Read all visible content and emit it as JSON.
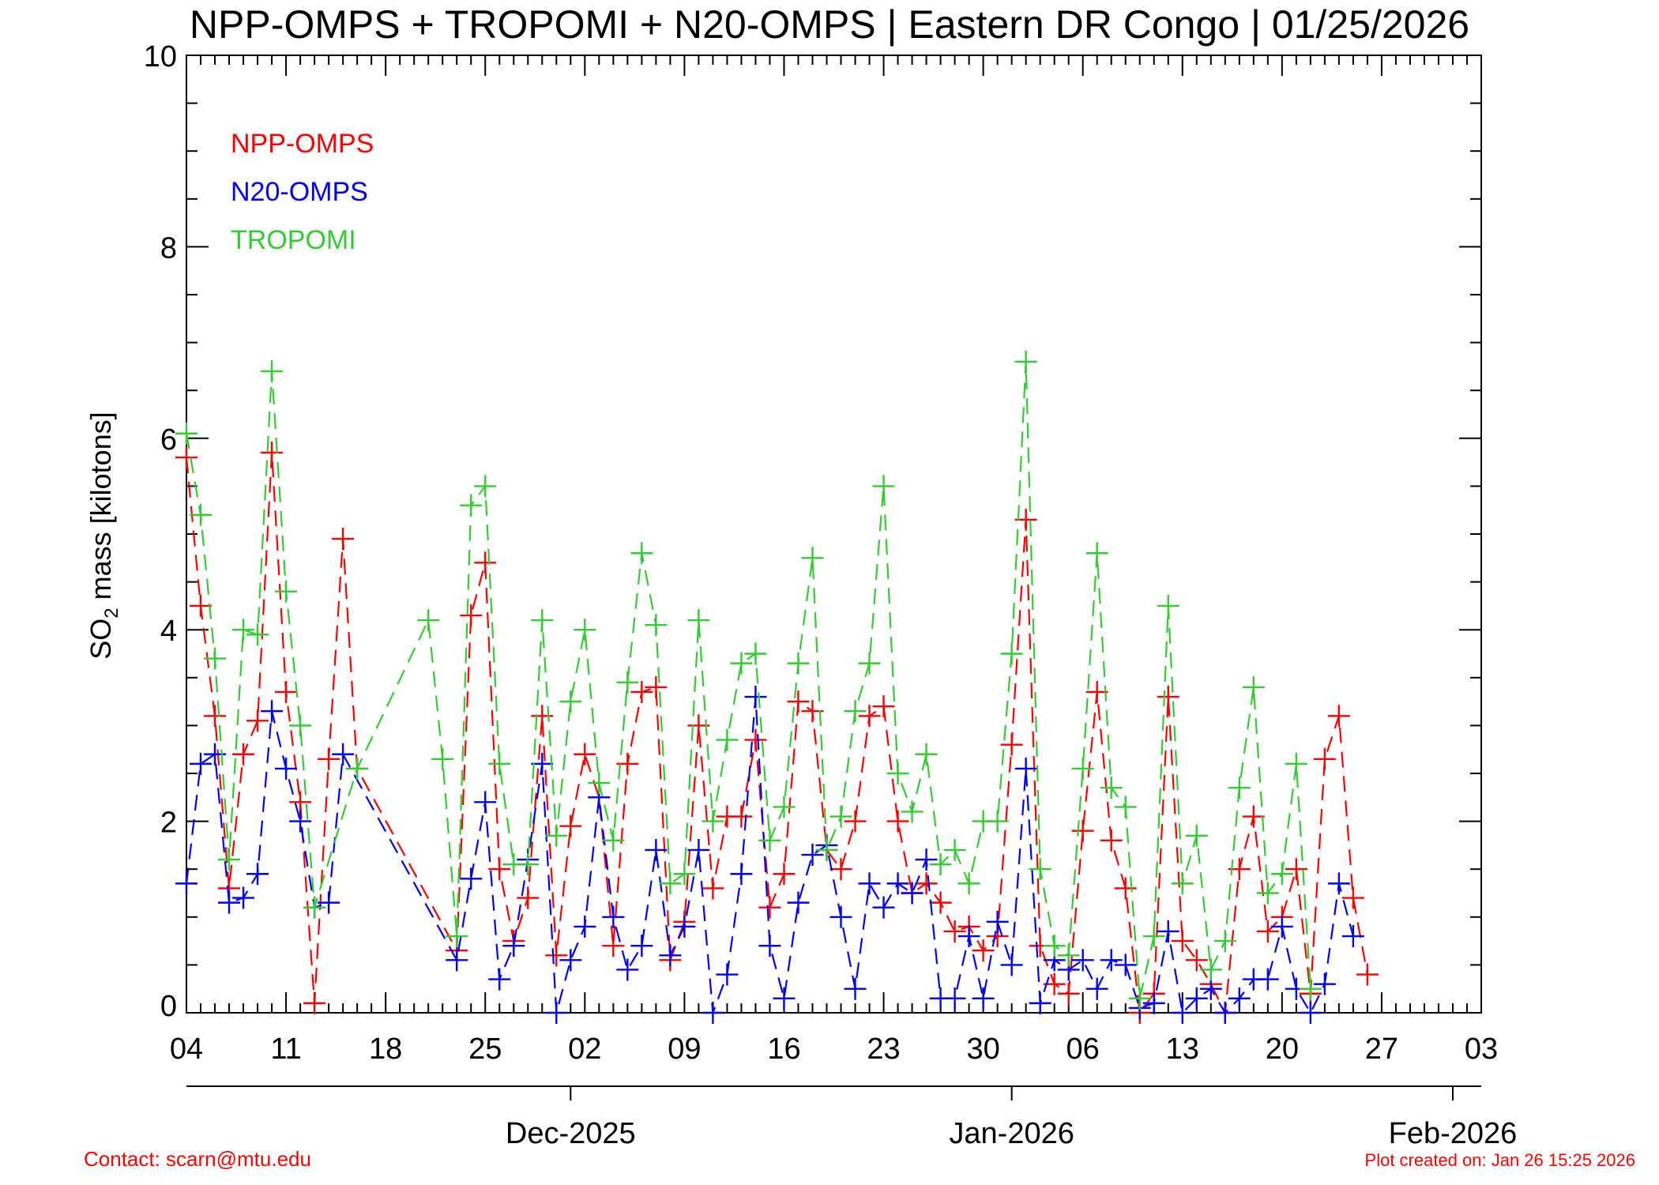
{
  "chart_data": {
    "type": "line",
    "title": "NPP-OMPS + TROPOMI + N20-OMPS | Eastern DR Congo | 01/25/2026",
    "ylabel_pre": "SO",
    "ylabel_sub": "2",
    "ylabel_post": " mass [kilotons]",
    "ylim": [
      0,
      10
    ],
    "y_ticks": [
      0,
      2,
      4,
      6,
      8,
      10
    ],
    "xlim": [
      "2025-11-04",
      "2026-02-03"
    ],
    "x_day_ticks": [
      {
        "date": "2025-11-04",
        "label": "04"
      },
      {
        "date": "2025-11-11",
        "label": "11"
      },
      {
        "date": "2025-11-18",
        "label": "18"
      },
      {
        "date": "2025-11-25",
        "label": "25"
      },
      {
        "date": "2025-12-02",
        "label": "02"
      },
      {
        "date": "2025-12-09",
        "label": "09"
      },
      {
        "date": "2025-12-16",
        "label": "16"
      },
      {
        "date": "2025-12-23",
        "label": "23"
      },
      {
        "date": "2025-12-30",
        "label": "30"
      },
      {
        "date": "2026-01-06",
        "label": "06"
      },
      {
        "date": "2026-01-13",
        "label": "13"
      },
      {
        "date": "2026-01-20",
        "label": "20"
      },
      {
        "date": "2026-01-27",
        "label": "27"
      },
      {
        "date": "2026-02-03",
        "label": "03"
      }
    ],
    "x_month_ticks": [
      {
        "date": "2025-12-01",
        "label": "Dec-2025"
      },
      {
        "date": "2026-01-01",
        "label": "Jan-2026"
      },
      {
        "date": "2026-02-01",
        "label": "Feb-2026"
      }
    ],
    "legend_position": "top-left",
    "series": [
      {
        "name": "NPP-OMPS",
        "color": "#ff0000",
        "points": [
          [
            "2025-11-04",
            5.8
          ],
          [
            "2025-11-05",
            4.25
          ],
          [
            "2025-11-06",
            3.1
          ],
          [
            "2025-11-07",
            1.3
          ],
          [
            "2025-11-08",
            2.7
          ],
          [
            "2025-11-09",
            3.05
          ],
          [
            "2025-11-10",
            5.85
          ],
          [
            "2025-11-11",
            3.35
          ],
          [
            "2025-11-12",
            2.2
          ],
          [
            "2025-11-13",
            0.1
          ],
          [
            "2025-11-14",
            2.65
          ],
          [
            "2025-11-15",
            4.95
          ],
          [
            "2025-11-16",
            2.55
          ],
          [
            "2025-11-23",
            0.65
          ],
          [
            "2025-11-24",
            4.15
          ],
          [
            "2025-11-25",
            4.7
          ],
          [
            "2025-11-26",
            1.5
          ],
          [
            "2025-11-27",
            0.75
          ],
          [
            "2025-11-28",
            1.2
          ],
          [
            "2025-11-29",
            3.1
          ],
          [
            "2025-11-30",
            0.6
          ],
          [
            "2025-12-01",
            1.95
          ],
          [
            "2025-12-02",
            2.7
          ],
          [
            "2025-12-03",
            2.25
          ],
          [
            "2025-12-04",
            0.7
          ],
          [
            "2025-12-05",
            2.6
          ],
          [
            "2025-12-06",
            3.35
          ],
          [
            "2025-12-07",
            3.4
          ],
          [
            "2025-12-08",
            0.55
          ],
          [
            "2025-12-09",
            0.95
          ],
          [
            "2025-12-10",
            3.0
          ],
          [
            "2025-12-11",
            1.3
          ],
          [
            "2025-12-12",
            2.05
          ],
          [
            "2025-12-13",
            2.05
          ],
          [
            "2025-12-14",
            2.85
          ],
          [
            "2025-12-15",
            1.1
          ],
          [
            "2025-12-16",
            1.45
          ],
          [
            "2025-12-17",
            3.25
          ],
          [
            "2025-12-18",
            3.15
          ],
          [
            "2025-12-19",
            1.7
          ],
          [
            "2025-12-20",
            1.5
          ],
          [
            "2025-12-21",
            2.0
          ],
          [
            "2025-12-22",
            3.1
          ],
          [
            "2025-12-23",
            3.2
          ],
          [
            "2025-12-24",
            2.0
          ],
          [
            "2025-12-25",
            1.25
          ],
          [
            "2025-12-26",
            1.35
          ],
          [
            "2025-12-27",
            1.15
          ],
          [
            "2025-12-28",
            0.85
          ],
          [
            "2025-12-29",
            0.9
          ],
          [
            "2025-12-30",
            0.65
          ],
          [
            "2025-12-31",
            0.8
          ],
          [
            "2026-01-01",
            2.8
          ],
          [
            "2026-01-02",
            5.15
          ],
          [
            "2026-01-03",
            0.7
          ],
          [
            "2026-01-04",
            0.3
          ],
          [
            "2026-01-05",
            0.2
          ],
          [
            "2026-01-06",
            1.9
          ],
          [
            "2026-01-07",
            3.35
          ],
          [
            "2026-01-08",
            1.8
          ],
          [
            "2026-01-09",
            1.3
          ],
          [
            "2026-01-10",
            0.0
          ],
          [
            "2026-01-11",
            0.2
          ],
          [
            "2026-01-12",
            3.3
          ],
          [
            "2026-01-13",
            0.75
          ],
          [
            "2026-01-14",
            0.55
          ],
          [
            "2026-01-15",
            0.3
          ],
          [
            "2026-01-16",
            0.0
          ],
          [
            "2026-01-17",
            1.5
          ],
          [
            "2026-01-18",
            2.05
          ],
          [
            "2026-01-19",
            0.85
          ],
          [
            "2026-01-20",
            1.0
          ],
          [
            "2026-01-21",
            1.5
          ],
          [
            "2026-01-22",
            0.2
          ],
          [
            "2026-01-23",
            2.65
          ],
          [
            "2026-01-24",
            3.1
          ],
          [
            "2026-01-25",
            1.2
          ],
          [
            "2026-01-26",
            0.4
          ]
        ]
      },
      {
        "name": "N20-OMPS",
        "color": "#0000ff",
        "points": [
          [
            "2025-11-04",
            1.35
          ],
          [
            "2025-11-05",
            2.6
          ],
          [
            "2025-11-06",
            2.7
          ],
          [
            "2025-11-07",
            1.15
          ],
          [
            "2025-11-08",
            1.2
          ],
          [
            "2025-11-09",
            1.45
          ],
          [
            "2025-11-10",
            3.15
          ],
          [
            "2025-11-11",
            2.55
          ],
          [
            "2025-11-12",
            2.0
          ],
          [
            "2025-11-13",
            1.1
          ],
          [
            "2025-11-14",
            1.15
          ],
          [
            "2025-11-15",
            2.7
          ],
          [
            "2025-11-23",
            0.55
          ],
          [
            "2025-11-24",
            1.4
          ],
          [
            "2025-11-25",
            2.2
          ],
          [
            "2025-11-26",
            0.35
          ],
          [
            "2025-11-27",
            0.7
          ],
          [
            "2025-11-28",
            1.6
          ],
          [
            "2025-11-29",
            2.6
          ],
          [
            "2025-11-30",
            0.0
          ],
          [
            "2025-12-01",
            0.55
          ],
          [
            "2025-12-02",
            0.9
          ],
          [
            "2025-12-03",
            2.25
          ],
          [
            "2025-12-04",
            1.0
          ],
          [
            "2025-12-05",
            0.45
          ],
          [
            "2025-12-06",
            0.7
          ],
          [
            "2025-12-07",
            1.7
          ],
          [
            "2025-12-08",
            0.6
          ],
          [
            "2025-12-09",
            0.9
          ],
          [
            "2025-12-10",
            1.7
          ],
          [
            "2025-12-11",
            0.0
          ],
          [
            "2025-12-12",
            0.4
          ],
          [
            "2025-12-13",
            1.45
          ],
          [
            "2025-12-14",
            3.3
          ],
          [
            "2025-12-15",
            0.7
          ],
          [
            "2025-12-16",
            0.15
          ],
          [
            "2025-12-17",
            1.15
          ],
          [
            "2025-12-18",
            1.65
          ],
          [
            "2025-12-19",
            1.75
          ],
          [
            "2025-12-20",
            1.0
          ],
          [
            "2025-12-21",
            0.25
          ],
          [
            "2025-12-22",
            1.35
          ],
          [
            "2025-12-23",
            1.1
          ],
          [
            "2025-12-24",
            1.35
          ],
          [
            "2025-12-25",
            1.25
          ],
          [
            "2025-12-26",
            1.6
          ],
          [
            "2025-12-27",
            0.15
          ],
          [
            "2025-12-28",
            0.15
          ],
          [
            "2025-12-29",
            0.8
          ],
          [
            "2025-12-30",
            0.15
          ],
          [
            "2025-12-31",
            0.95
          ],
          [
            "2026-01-01",
            0.5
          ],
          [
            "2026-01-02",
            2.55
          ],
          [
            "2026-01-03",
            0.1
          ],
          [
            "2026-01-04",
            0.55
          ],
          [
            "2026-01-05",
            0.45
          ],
          [
            "2026-01-06",
            0.55
          ],
          [
            "2026-01-07",
            0.25
          ],
          [
            "2026-01-08",
            0.55
          ],
          [
            "2026-01-09",
            0.5
          ],
          [
            "2026-01-10",
            0.05
          ],
          [
            "2026-01-11",
            0.1
          ],
          [
            "2026-01-12",
            0.85
          ],
          [
            "2026-01-13",
            0.0
          ],
          [
            "2026-01-14",
            0.15
          ],
          [
            "2026-01-15",
            0.25
          ],
          [
            "2026-01-16",
            0.0
          ],
          [
            "2026-01-17",
            0.15
          ],
          [
            "2026-01-18",
            0.35
          ],
          [
            "2026-01-19",
            0.35
          ],
          [
            "2026-01-20",
            0.9
          ],
          [
            "2026-01-21",
            0.25
          ],
          [
            "2026-01-22",
            0.0
          ],
          [
            "2026-01-23",
            0.3
          ],
          [
            "2026-01-24",
            1.35
          ],
          [
            "2026-01-25",
            0.8
          ]
        ]
      },
      {
        "name": "TROPOMI",
        "color": "#33cc33",
        "points": [
          [
            "2025-11-04",
            6.05
          ],
          [
            "2025-11-05",
            5.2
          ],
          [
            "2025-11-06",
            3.7
          ],
          [
            "2025-11-07",
            1.6
          ],
          [
            "2025-11-08",
            4.0
          ],
          [
            "2025-11-09",
            3.95
          ],
          [
            "2025-11-10",
            6.7
          ],
          [
            "2025-11-11",
            4.4
          ],
          [
            "2025-11-12",
            3.0
          ],
          [
            "2025-11-13",
            1.1
          ],
          [
            "2025-11-16",
            2.55
          ],
          [
            "2025-11-21",
            4.1
          ],
          [
            "2025-11-22",
            2.65
          ],
          [
            "2025-11-23",
            0.8
          ],
          [
            "2025-11-24",
            5.3
          ],
          [
            "2025-11-25",
            5.5
          ],
          [
            "2025-11-26",
            2.6
          ],
          [
            "2025-11-27",
            1.55
          ],
          [
            "2025-11-28",
            1.55
          ],
          [
            "2025-11-29",
            4.1
          ],
          [
            "2025-11-30",
            1.85
          ],
          [
            "2025-12-01",
            3.25
          ],
          [
            "2025-12-02",
            4.0
          ],
          [
            "2025-12-03",
            2.4
          ],
          [
            "2025-12-04",
            1.8
          ],
          [
            "2025-12-05",
            3.45
          ],
          [
            "2025-12-06",
            4.8
          ],
          [
            "2025-12-07",
            4.05
          ],
          [
            "2025-12-08",
            1.35
          ],
          [
            "2025-12-09",
            1.45
          ],
          [
            "2025-12-10",
            4.1
          ],
          [
            "2025-12-11",
            2.0
          ],
          [
            "2025-12-12",
            2.85
          ],
          [
            "2025-12-13",
            3.65
          ],
          [
            "2025-12-14",
            3.75
          ],
          [
            "2025-12-15",
            1.8
          ],
          [
            "2025-12-16",
            2.15
          ],
          [
            "2025-12-17",
            3.65
          ],
          [
            "2025-12-18",
            4.75
          ],
          [
            "2025-12-19",
            1.7
          ],
          [
            "2025-12-20",
            2.05
          ],
          [
            "2025-12-21",
            3.15
          ],
          [
            "2025-12-22",
            3.65
          ],
          [
            "2025-12-23",
            5.5
          ],
          [
            "2025-12-24",
            2.5
          ],
          [
            "2025-12-25",
            2.1
          ],
          [
            "2025-12-26",
            2.7
          ],
          [
            "2025-12-27",
            1.55
          ],
          [
            "2025-12-28",
            1.7
          ],
          [
            "2025-12-29",
            1.35
          ],
          [
            "2025-12-30",
            2.0
          ],
          [
            "2025-12-31",
            2.0
          ],
          [
            "2026-01-01",
            3.75
          ],
          [
            "2026-01-02",
            6.8
          ],
          [
            "2026-01-03",
            1.5
          ],
          [
            "2026-01-04",
            0.7
          ],
          [
            "2026-01-05",
            0.6
          ],
          [
            "2026-01-06",
            2.55
          ],
          [
            "2026-01-07",
            4.8
          ],
          [
            "2026-01-08",
            2.35
          ],
          [
            "2026-01-09",
            2.15
          ],
          [
            "2026-01-10",
            0.15
          ],
          [
            "2026-01-11",
            0.8
          ],
          [
            "2026-01-12",
            4.25
          ],
          [
            "2026-01-13",
            1.35
          ],
          [
            "2026-01-14",
            1.85
          ],
          [
            "2026-01-15",
            0.45
          ],
          [
            "2026-01-16",
            0.75
          ],
          [
            "2026-01-17",
            2.35
          ],
          [
            "2026-01-18",
            3.4
          ],
          [
            "2026-01-19",
            1.25
          ],
          [
            "2026-01-20",
            1.45
          ],
          [
            "2026-01-21",
            2.6
          ],
          [
            "2026-01-22",
            0.25
          ]
        ]
      }
    ]
  },
  "footer": {
    "contact": "Contact: scarn@mtu.edu",
    "created": "Plot created on: Jan 26 15:25 2026"
  }
}
